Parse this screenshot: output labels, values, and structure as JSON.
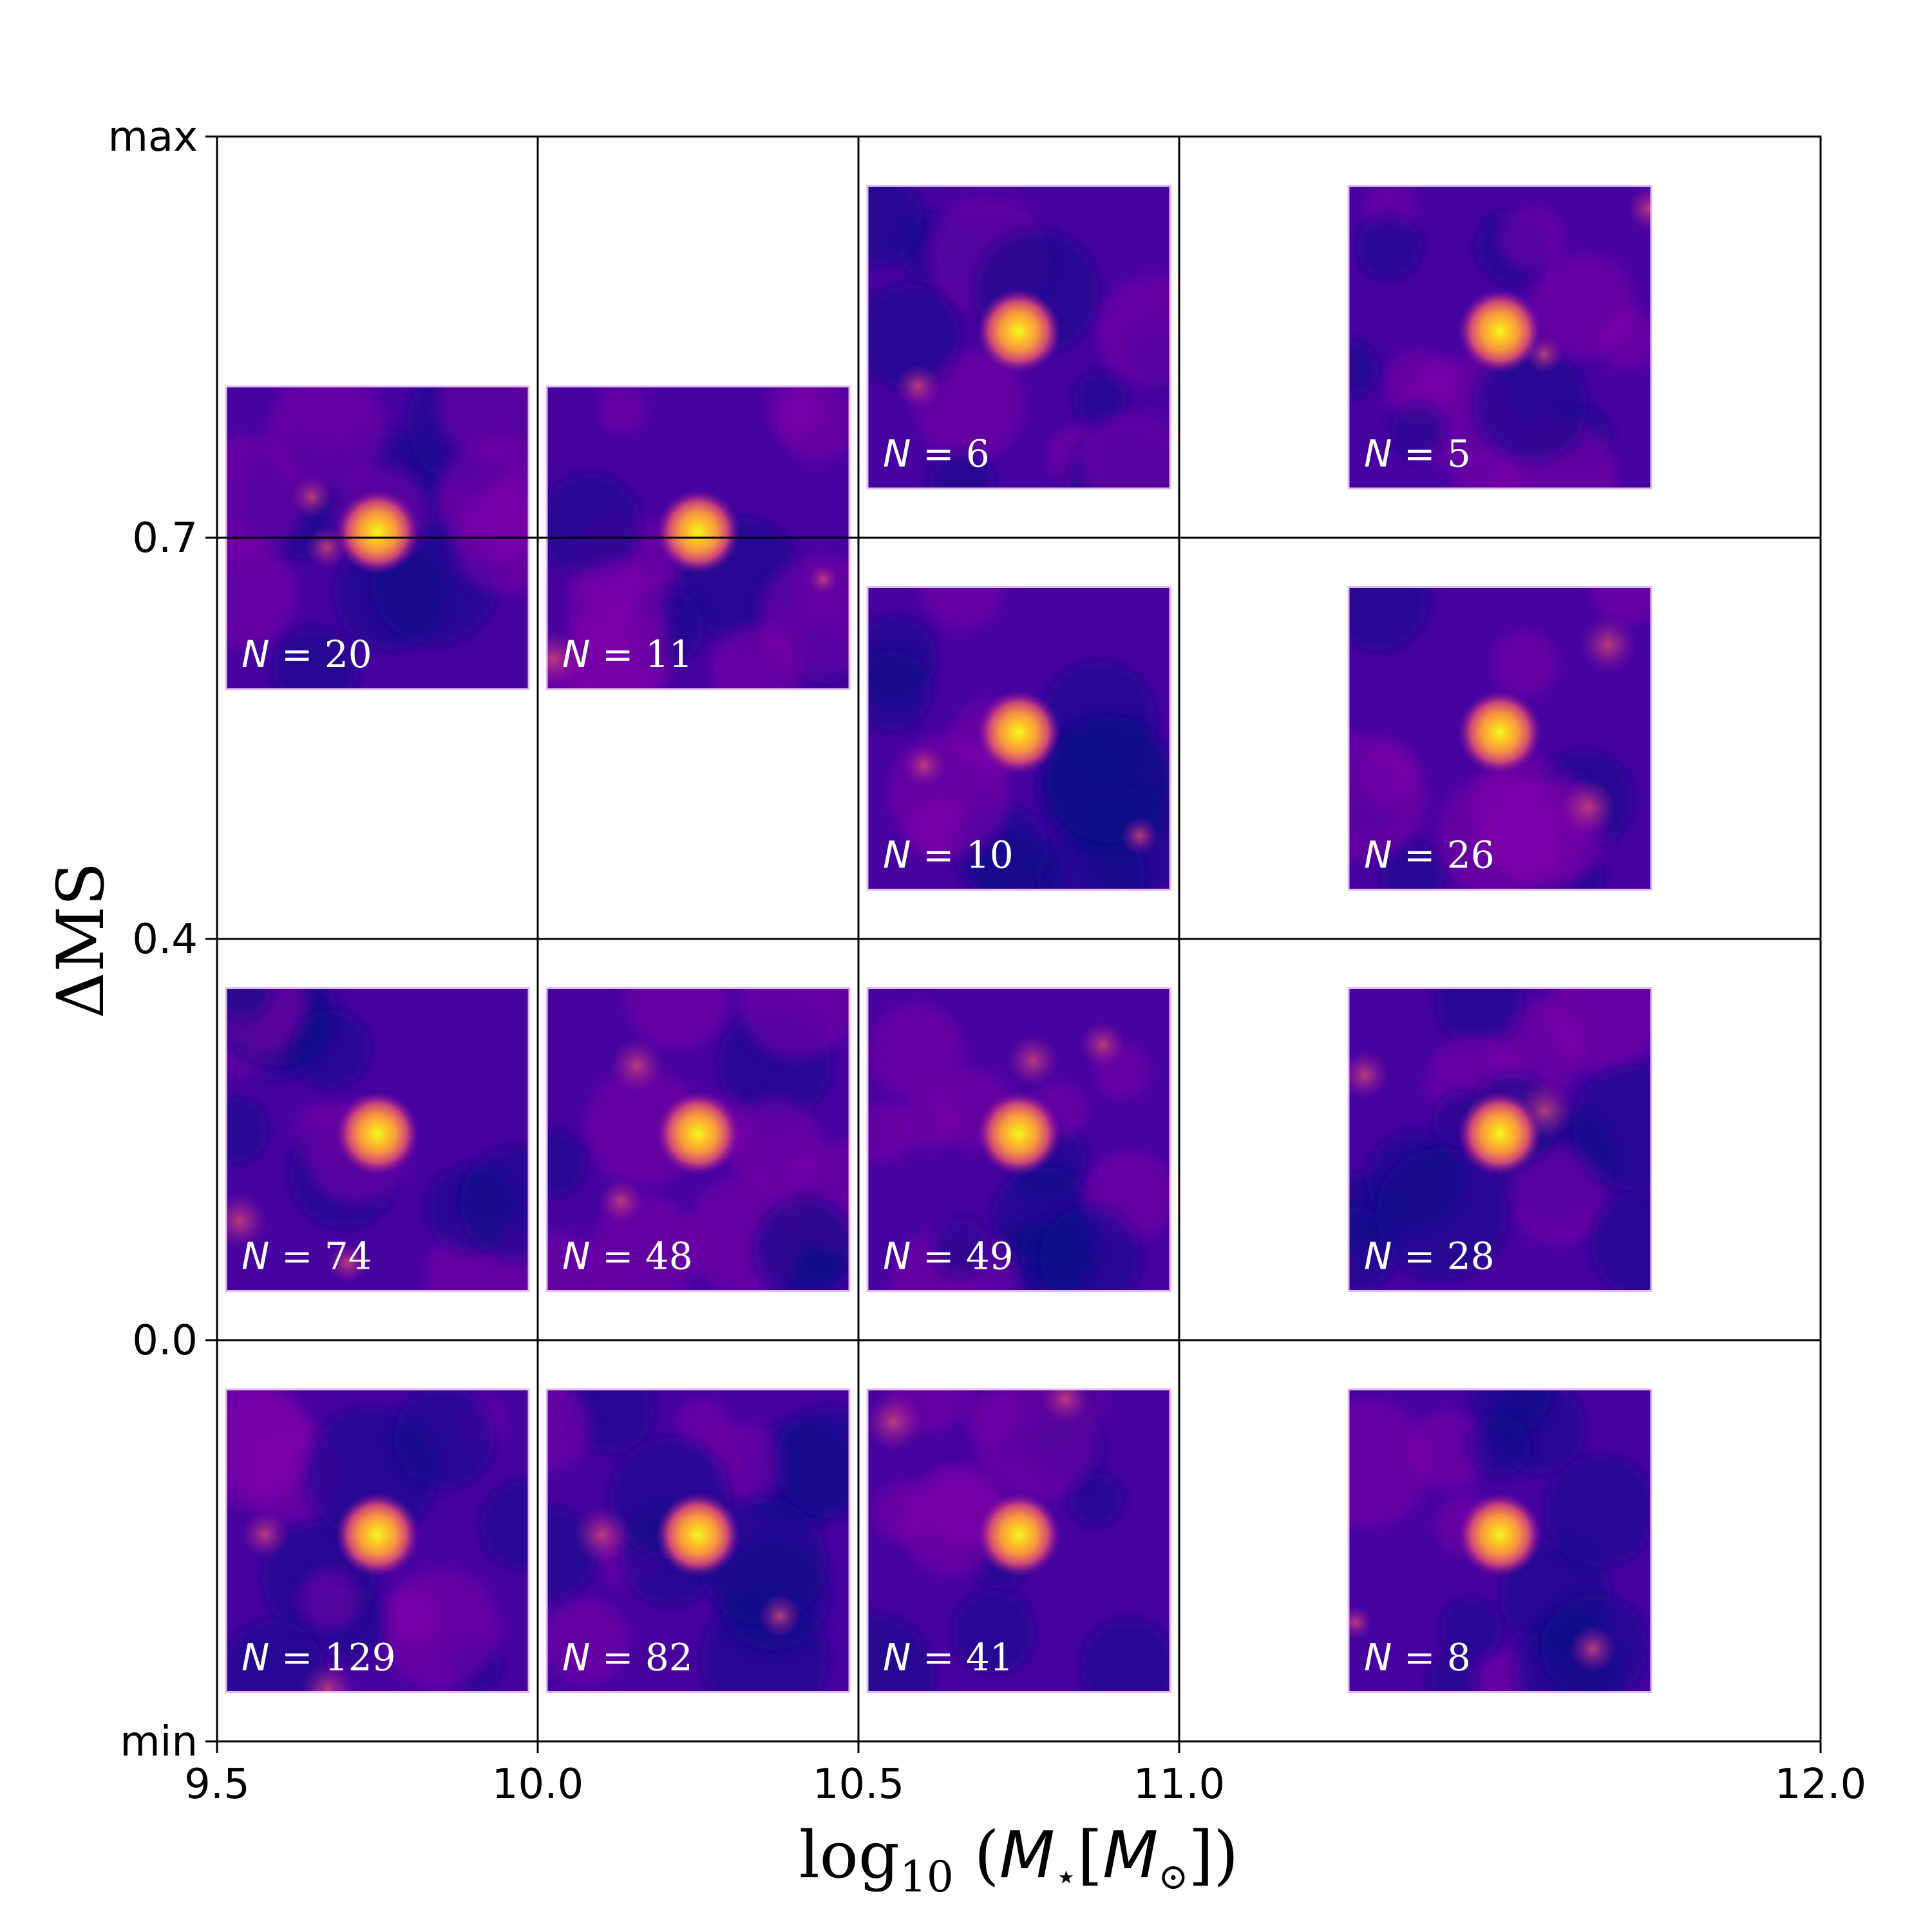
{
  "chart_data": {
    "type": "heatmap",
    "title": "",
    "x_axis": {
      "ticks": [
        "9.5",
        "10.0",
        "10.5",
        "11.0",
        "12.0"
      ],
      "tick_values": [
        9.5,
        10.0,
        10.5,
        11.0,
        12.0
      ],
      "range": [
        9.5,
        12.0
      ]
    },
    "y_axis": {
      "ticks": [
        "max",
        "0.7",
        "0.4",
        "0.0",
        "min"
      ],
      "label": "ΔMS"
    },
    "x_bin_edges": [
      9.5,
      10.0,
      10.5,
      11.0,
      12.0
    ],
    "y_bin_edges": [
      "min",
      "0.0",
      "0.4",
      "0.7",
      "max"
    ],
    "colormap": [
      "#0d0887",
      "#46039f",
      "#7e03a8",
      "#cc4778",
      "#f89540",
      "#f0f921"
    ],
    "panels": [
      {
        "x_bin": [
          9.5,
          10.0
        ],
        "y_bin": [
          "0.4",
          "max"
        ],
        "N": 20
      },
      {
        "x_bin": [
          10.0,
          10.5
        ],
        "y_bin": [
          "0.4",
          "max"
        ],
        "N": 11
      },
      {
        "x_bin": [
          10.5,
          11.0
        ],
        "y_bin": [
          "0.7",
          "max"
        ],
        "N": 6
      },
      {
        "x_bin": [
          11.0,
          12.0
        ],
        "y_bin": [
          "0.7",
          "max"
        ],
        "N": 5
      },
      {
        "x_bin": [
          10.5,
          11.0
        ],
        "y_bin": [
          "0.4",
          "0.7"
        ],
        "N": 10
      },
      {
        "x_bin": [
          11.0,
          12.0
        ],
        "y_bin": [
          "0.4",
          "0.7"
        ],
        "N": 26
      },
      {
        "x_bin": [
          9.5,
          10.0
        ],
        "y_bin": [
          "0.0",
          "0.4"
        ],
        "N": 74
      },
      {
        "x_bin": [
          10.0,
          10.5
        ],
        "y_bin": [
          "0.0",
          "0.4"
        ],
        "N": 48
      },
      {
        "x_bin": [
          10.5,
          11.0
        ],
        "y_bin": [
          "0.0",
          "0.4"
        ],
        "N": 49
      },
      {
        "x_bin": [
          11.0,
          12.0
        ],
        "y_bin": [
          "0.0",
          "0.4"
        ],
        "N": 28
      },
      {
        "x_bin": [
          9.5,
          10.0
        ],
        "y_bin": [
          "min",
          "0.0"
        ],
        "N": 129
      },
      {
        "x_bin": [
          10.0,
          10.5
        ],
        "y_bin": [
          "min",
          "0.0"
        ],
        "N": 82
      },
      {
        "x_bin": [
          10.5,
          11.0
        ],
        "y_bin": [
          "min",
          "0.0"
        ],
        "N": 41
      },
      {
        "x_bin": [
          11.0,
          12.0
        ],
        "y_bin": [
          "min",
          "0.0"
        ],
        "N": 8
      }
    ]
  }
}
